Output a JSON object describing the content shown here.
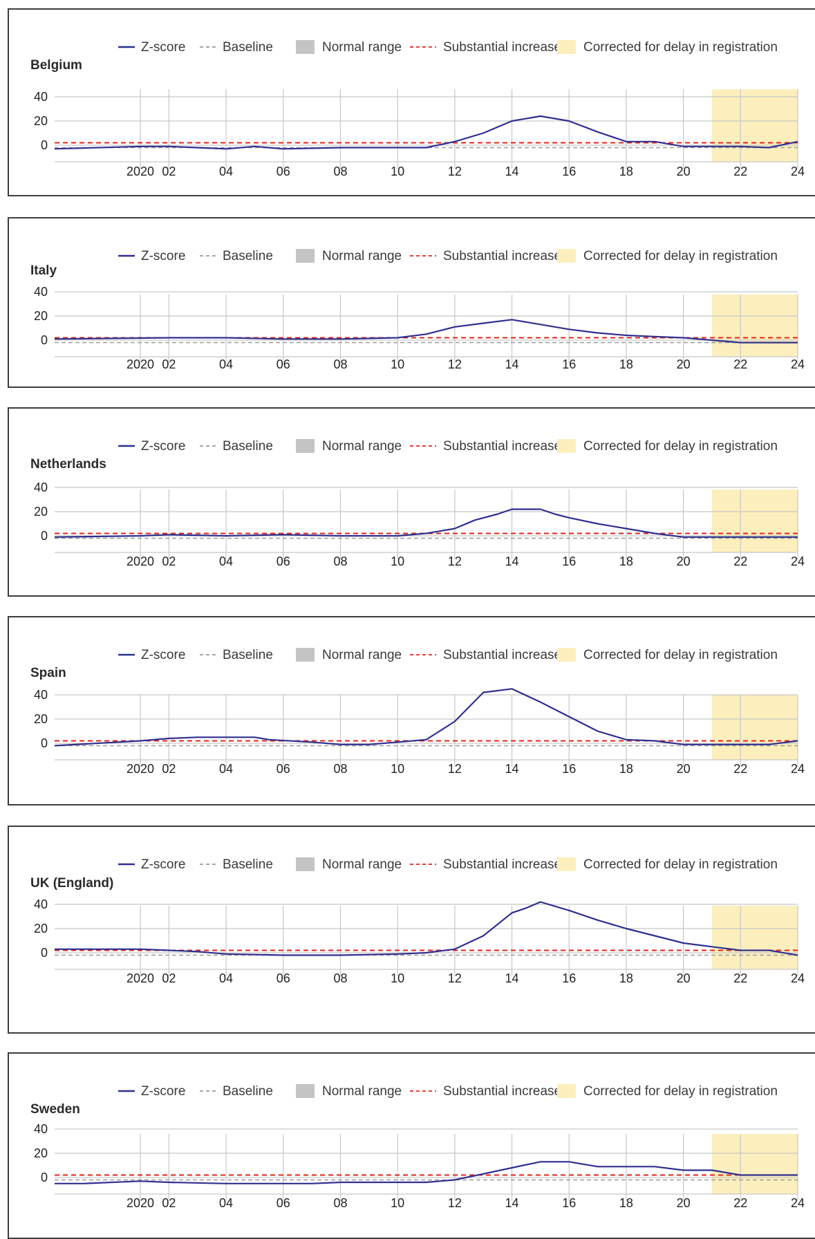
{
  "colors": {
    "zscore": "#2e2f8f",
    "baseline": "#9a9a9a",
    "normal_range": "#c4c4c4",
    "substantial_increase": "#e2231a",
    "corrected": "#fcefbd",
    "grid": "#c6c6c6"
  },
  "legend": [
    {
      "key": "zscore",
      "label": "Z-score",
      "style": "solid-line"
    },
    {
      "key": "baseline",
      "label": "Baseline",
      "style": "dashed-line"
    },
    {
      "key": "normal_range",
      "label": "Normal range",
      "style": "box"
    },
    {
      "key": "substantial_increase",
      "label": "Substantial increase",
      "style": "dashed-line"
    },
    {
      "key": "corrected",
      "label": "Corrected for delay in registration",
      "style": "box"
    }
  ],
  "chart_data": [
    {
      "type": "line",
      "title": "Belgium",
      "x_ticks": [
        "2020",
        "02",
        "04",
        "06",
        "08",
        "10",
        "12",
        "14",
        "16",
        "18",
        "20",
        "22",
        "24"
      ],
      "xlim": [
        51,
        24
      ],
      "ylim": [
        -10,
        45
      ],
      "y_ticks": [
        0,
        20,
        40
      ],
      "grid": true,
      "baseline": -2,
      "substantial_increase": 2,
      "corrected_from_week": 21,
      "series": [
        {
          "values": [
            [
              51,
              -3
            ],
            [
              1,
              -1
            ],
            [
              2,
              -1
            ],
            [
              3,
              -2
            ],
            [
              4,
              -3
            ],
            [
              5,
              -1
            ],
            [
              6,
              -3
            ],
            [
              8,
              -2
            ],
            [
              10,
              -2
            ],
            [
              11,
              -2
            ],
            [
              12,
              3
            ],
            [
              13,
              10
            ],
            [
              14,
              20
            ],
            [
              15,
              24
            ],
            [
              16,
              20
            ],
            [
              17,
              11
            ],
            [
              18,
              3
            ],
            [
              19,
              3
            ],
            [
              20,
              -1
            ],
            [
              22,
              -1
            ],
            [
              23,
              -2
            ],
            [
              24,
              3
            ]
          ]
        }
      ]
    },
    {
      "type": "line",
      "title": "Italy",
      "x_ticks": [
        "2020",
        "02",
        "04",
        "06",
        "08",
        "10",
        "12",
        "14",
        "16",
        "18",
        "20",
        "22",
        "24"
      ],
      "xlim": [
        51,
        24
      ],
      "ylim": [
        -10,
        45
      ],
      "y_ticks": [
        0,
        20,
        40
      ],
      "grid": true,
      "baseline": -2,
      "substantial_increase": 2,
      "corrected_from_week": 21,
      "series": [
        {
          "values": [
            [
              51,
              1
            ],
            [
              2,
              2
            ],
            [
              3,
              2
            ],
            [
              4,
              2
            ],
            [
              6,
              1
            ],
            [
              8,
              1
            ],
            [
              10,
              2
            ],
            [
              11,
              5
            ],
            [
              12,
              11
            ],
            [
              13,
              14
            ],
            [
              14,
              17
            ],
            [
              15,
              13
            ],
            [
              16,
              9
            ],
            [
              17,
              6
            ],
            [
              18,
              4
            ],
            [
              19,
              3
            ],
            [
              20,
              2
            ],
            [
              21,
              0
            ],
            [
              22,
              -2
            ],
            [
              24,
              -2
            ]
          ]
        }
      ]
    },
    {
      "type": "line",
      "title": "Netherlands",
      "x_ticks": [
        "2020",
        "02",
        "04",
        "06",
        "08",
        "10",
        "12",
        "14",
        "16",
        "18",
        "20",
        "22",
        "24"
      ],
      "xlim": [
        51,
        24
      ],
      "ylim": [
        -10,
        45
      ],
      "y_ticks": [
        0,
        20,
        40
      ],
      "grid": true,
      "baseline": -2,
      "substantial_increase": 2,
      "corrected_from_week": 21,
      "series": [
        {
          "values": [
            [
              51,
              -1
            ],
            [
              1,
              0
            ],
            [
              2,
              1
            ],
            [
              4,
              0
            ],
            [
              6,
              1
            ],
            [
              8,
              0
            ],
            [
              10,
              0
            ],
            [
              11,
              2
            ],
            [
              12,
              6
            ],
            [
              12.7,
              13
            ],
            [
              13.5,
              18
            ],
            [
              14,
              22
            ],
            [
              15,
              22
            ],
            [
              15.5,
              18
            ],
            [
              16,
              15
            ],
            [
              17,
              10
            ],
            [
              18,
              6
            ],
            [
              19,
              2
            ],
            [
              20,
              -1
            ],
            [
              21,
              -1
            ],
            [
              22,
              -1
            ],
            [
              24,
              -1
            ]
          ]
        }
      ]
    },
    {
      "type": "line",
      "title": "Spain",
      "x_ticks": [
        "2020",
        "02",
        "04",
        "06",
        "08",
        "10",
        "12",
        "14",
        "16",
        "18",
        "20",
        "22",
        "24"
      ],
      "xlim": [
        51,
        24
      ],
      "ylim": [
        -10,
        45
      ],
      "y_ticks": [
        0,
        20,
        40
      ],
      "grid": true,
      "baseline": -2,
      "substantial_increase": 2,
      "corrected_from_week": 21,
      "series": [
        {
          "values": [
            [
              51,
              -2
            ],
            [
              1,
              2
            ],
            [
              2,
              4
            ],
            [
              3,
              5
            ],
            [
              5,
              5
            ],
            [
              5.5,
              3
            ],
            [
              7,
              1
            ],
            [
              8,
              -1
            ],
            [
              9,
              -1
            ],
            [
              10,
              1
            ],
            [
              11,
              3
            ],
            [
              12,
              18
            ],
            [
              13,
              42
            ],
            [
              14,
              45
            ],
            [
              15,
              34
            ],
            [
              16,
              22
            ],
            [
              17,
              10
            ],
            [
              18,
              3
            ],
            [
              19,
              2
            ],
            [
              20,
              -1
            ],
            [
              21,
              -1
            ],
            [
              22,
              -1
            ],
            [
              23,
              -1
            ],
            [
              24,
              2
            ]
          ]
        }
      ]
    },
    {
      "type": "line",
      "title": "UK (England)",
      "x_ticks": [
        "2020",
        "02",
        "04",
        "06",
        "08",
        "10",
        "12",
        "14",
        "16",
        "18",
        "20",
        "22",
        "24"
      ],
      "xlim": [
        51,
        24
      ],
      "ylim": [
        -10,
        45
      ],
      "y_ticks": [
        0,
        20,
        40
      ],
      "grid": true,
      "baseline": -2,
      "substantial_increase": 2,
      "corrected_from_week": 21,
      "series": [
        {
          "values": [
            [
              51,
              3
            ],
            [
              1,
              3
            ],
            [
              2,
              2
            ],
            [
              3,
              1
            ],
            [
              4,
              -1
            ],
            [
              6,
              -2
            ],
            [
              8,
              -2
            ],
            [
              10,
              -1
            ],
            [
              11,
              0
            ],
            [
              12,
              3
            ],
            [
              13,
              14
            ],
            [
              14,
              33
            ],
            [
              14.5,
              37
            ],
            [
              15,
              42
            ],
            [
              16,
              35
            ],
            [
              17,
              27
            ],
            [
              18,
              20
            ],
            [
              19,
              14
            ],
            [
              20,
              8
            ],
            [
              21,
              5
            ],
            [
              22,
              2
            ],
            [
              23,
              2
            ],
            [
              24,
              -2
            ]
          ]
        }
      ]
    },
    {
      "type": "line",
      "title": "Sweden",
      "x_ticks": [
        "2020",
        "02",
        "04",
        "06",
        "08",
        "10",
        "12",
        "14",
        "16",
        "18",
        "20",
        "22",
        "24"
      ],
      "xlim": [
        51,
        24
      ],
      "ylim": [
        -10,
        45
      ],
      "y_ticks": [
        0,
        20,
        40
      ],
      "grid": true,
      "baseline": -2,
      "substantial_increase": 2,
      "corrected_from_week": 21,
      "series": [
        {
          "values": [
            [
              51,
              -5
            ],
            [
              52,
              -5
            ],
            [
              1,
              -3
            ],
            [
              2,
              -4
            ],
            [
              4,
              -5
            ],
            [
              7,
              -5
            ],
            [
              8,
              -4
            ],
            [
              10,
              -4
            ],
            [
              11,
              -4
            ],
            [
              12,
              -2
            ],
            [
              13,
              3
            ],
            [
              14,
              8
            ],
            [
              15,
              13
            ],
            [
              16,
              13
            ],
            [
              17,
              9
            ],
            [
              18,
              9
            ],
            [
              19,
              9
            ],
            [
              20,
              6
            ],
            [
              21,
              6
            ],
            [
              22,
              2
            ],
            [
              23,
              2
            ],
            [
              24,
              2
            ]
          ]
        }
      ]
    }
  ]
}
